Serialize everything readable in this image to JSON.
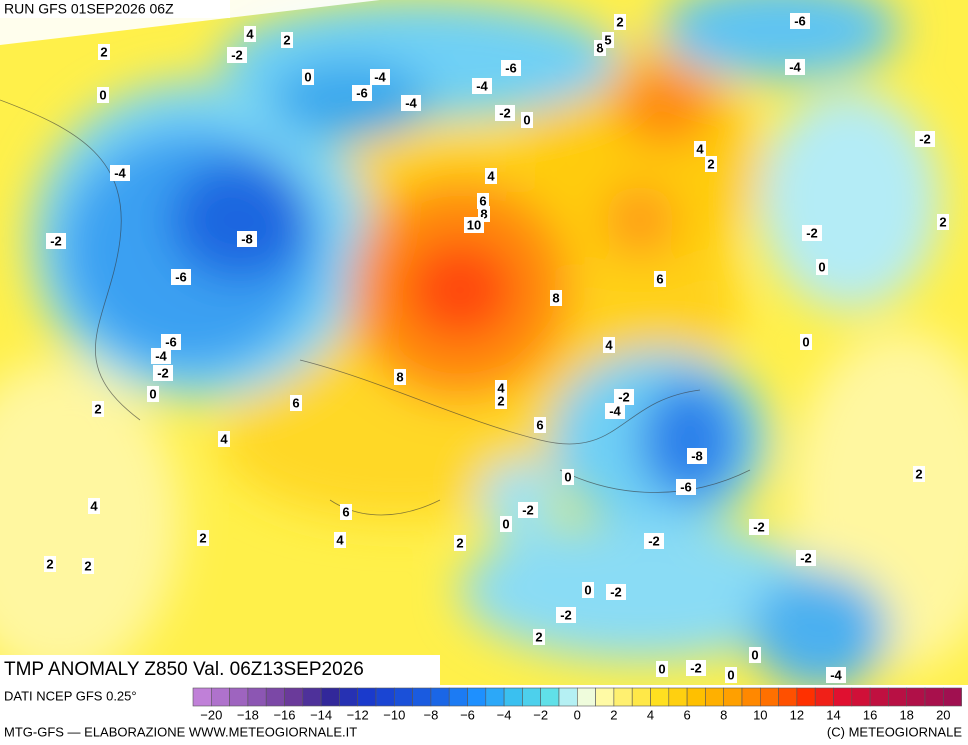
{
  "header": {
    "run": "RUN GFS 01SEP2026 06Z",
    "title": "TMP ANOMALY Z850 Val. 06Z13SEP2026"
  },
  "contour_labels": [
    "2",
    "-6",
    "4",
    "2",
    "-2",
    "2",
    "8",
    "5",
    "-4",
    "-6",
    "0",
    "-4",
    "-6",
    "-4",
    "-4",
    "0",
    "-2",
    "0",
    "4",
    "2",
    "-2",
    "-4",
    "4",
    "6",
    "8",
    "10",
    "-8",
    "-2",
    "2",
    "-2",
    "0",
    "-6",
    "6",
    "8",
    "-6",
    "4",
    "0",
    "-4",
    "-2",
    "8",
    "4",
    "2",
    "0",
    "-2",
    "-4",
    "6",
    "2",
    "6",
    "4",
    "-8",
    "0",
    "-6",
    "4",
    "-2",
    "6",
    "0",
    "-2",
    "4",
    "2",
    "-2",
    "2",
    "-2",
    "2",
    "2",
    "0",
    "-2",
    "-2",
    "2",
    "0",
    "0",
    "-2",
    "0",
    "-4",
    "2"
  ],
  "colorbar": {
    "ticks": [
      "−20",
      "−18",
      "−16",
      "−14",
      "−12",
      "−10",
      "−8",
      "−6",
      "−4",
      "−2",
      "0",
      "2",
      "4",
      "6",
      "8",
      "10",
      "12",
      "14",
      "16",
      "18",
      "20"
    ]
  },
  "footer": {
    "source": "DATI NCEP GFS 0.25°",
    "credit": "MTG-GFS — ELABORAZIONE WWW.METEOGIORNALE.IT",
    "copyright": "(C) METEOGIORNALE"
  }
}
